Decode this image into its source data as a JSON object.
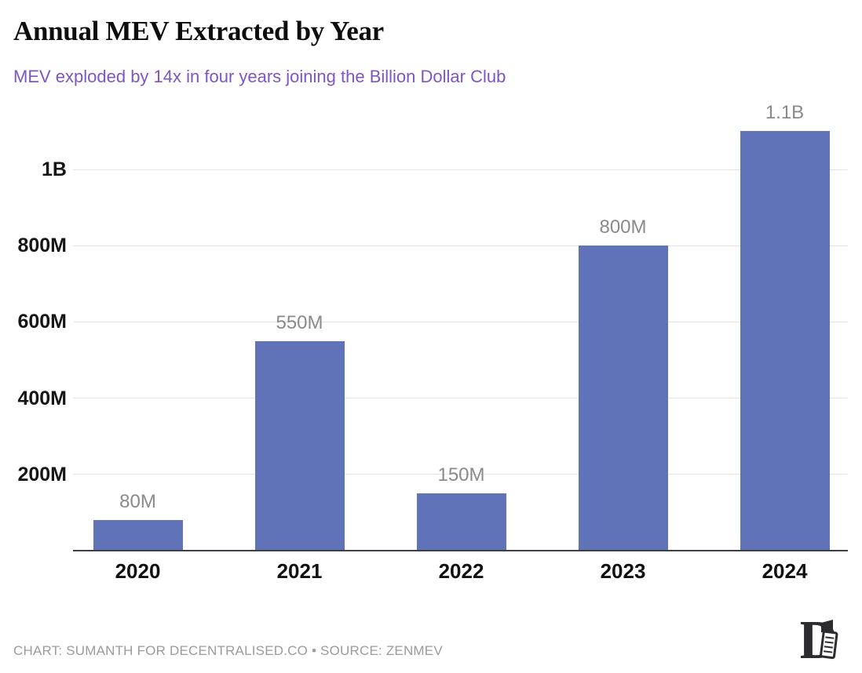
{
  "header": {
    "title": "Annual MEV Extracted by Year",
    "subtitle": "MEV exploded by 14x in four years joining the Billion Dollar Club"
  },
  "footer": {
    "credit": "CHART: SUMANTH FOR DECENTRALISED.CO • SOURCE: ZENMEV"
  },
  "colors": {
    "bar": "#6173b8",
    "subtitle_text": "#7d55c5",
    "value_label_text": "#8a8a8a",
    "gridline": "#e3e3e3",
    "axis_line": "#3f3f47",
    "footer_text": "#9b9b9b",
    "logo": "#2b2b30"
  },
  "chart_data": {
    "type": "bar",
    "title": "Annual MEV Extracted by Year",
    "subtitle": "MEV exploded by 14x in four years joining the Billion Dollar Club",
    "categories": [
      "2020",
      "2021",
      "2022",
      "2023",
      "2024"
    ],
    "values_millions_usd": [
      80,
      550,
      150,
      800,
      1100
    ],
    "value_labels": [
      "80M",
      "550M",
      "150M",
      "800M",
      "1.1B"
    ],
    "xlabel": "",
    "ylabel": "",
    "ylim_millions_usd": [
      0,
      1135
    ],
    "yticks": [
      {
        "label": "200M",
        "value_millions_usd": 200
      },
      {
        "label": "400M",
        "value_millions_usd": 400
      },
      {
        "label": "600M",
        "value_millions_usd": 600
      },
      {
        "label": "800M",
        "value_millions_usd": 800
      },
      {
        "label": "1B",
        "value_millions_usd": 1000
      }
    ],
    "grid": "horizontal",
    "legend": "none"
  }
}
